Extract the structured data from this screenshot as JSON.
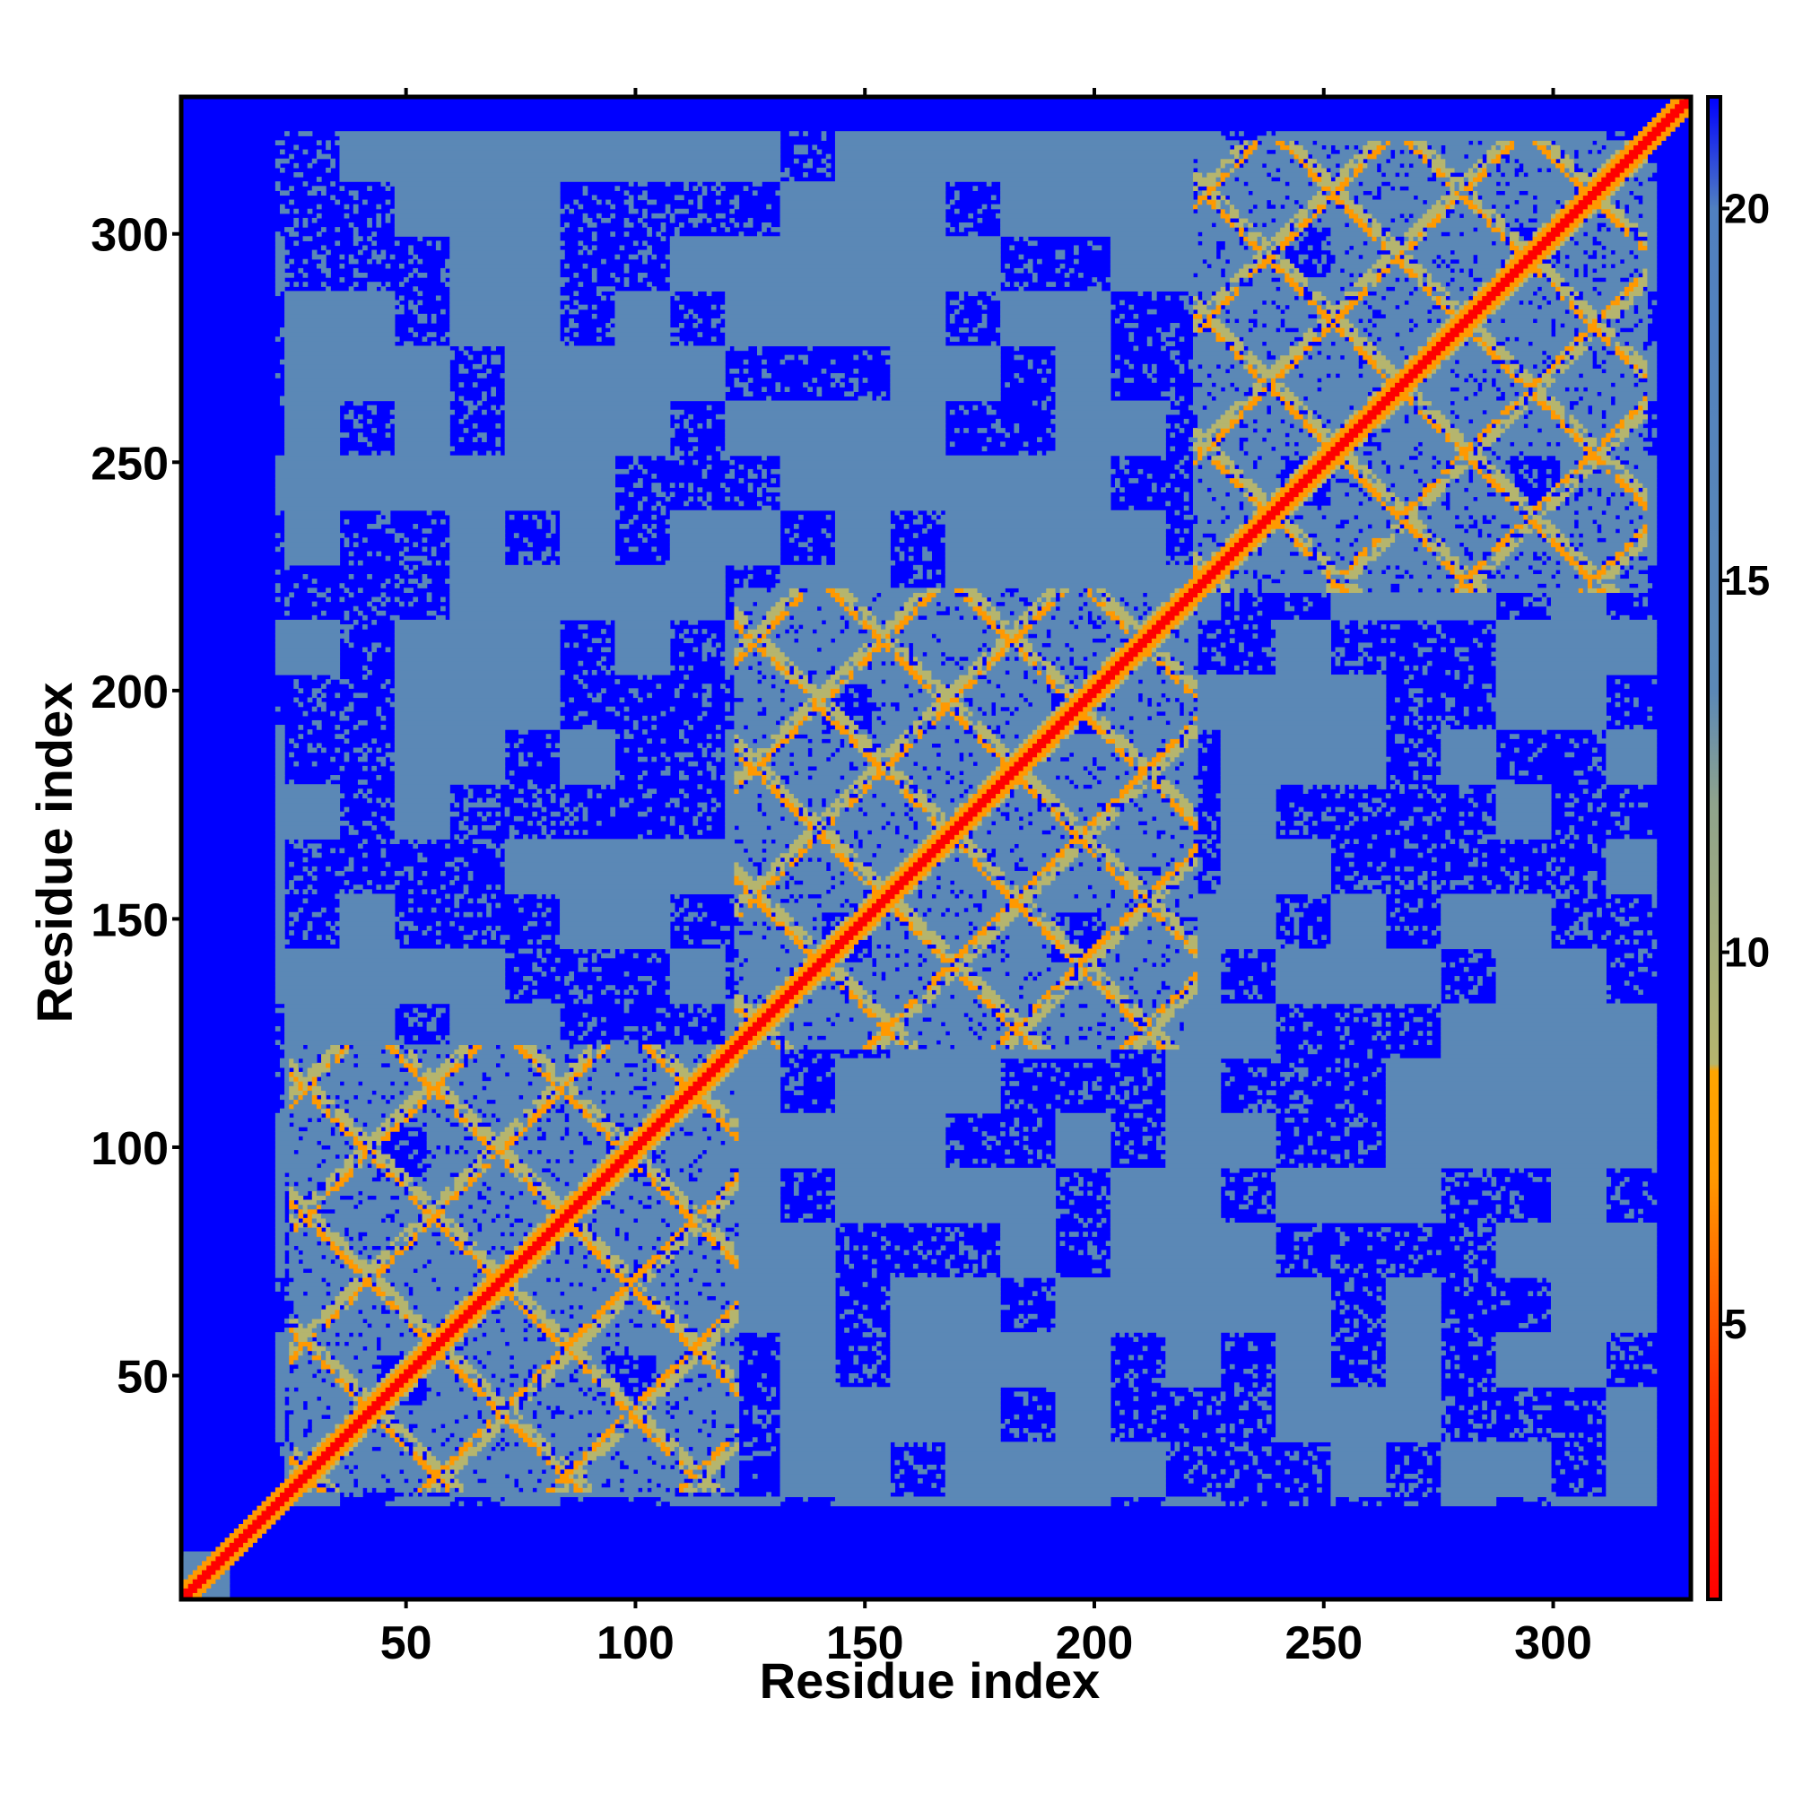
{
  "chart_data": {
    "type": "heatmap",
    "title": "",
    "xlabel": "Residue index",
    "ylabel": "Residue index",
    "xlim": [
      1,
      330
    ],
    "ylim": [
      1,
      330
    ],
    "x_ticks": [
      50,
      100,
      150,
      200,
      250,
      300
    ],
    "y_ticks": [
      50,
      100,
      150,
      200,
      250,
      300
    ],
    "colorbar": {
      "ticks": [
        5,
        10,
        15,
        20
      ],
      "range": [
        1.3,
        21.5
      ],
      "stops": [
        {
          "value": 1.3,
          "color": "#ff0000"
        },
        {
          "value": 4.0,
          "color": "#ff3300"
        },
        {
          "value": 7.0,
          "color": "#ff9900"
        },
        {
          "value": 8.4,
          "color": "#ffa500"
        },
        {
          "value": 8.5,
          "color": "#b5b56e"
        },
        {
          "value": 12.0,
          "color": "#8fa38c"
        },
        {
          "value": 13.5,
          "color": "#5b88b6"
        },
        {
          "value": 20.0,
          "color": "#5080c0"
        },
        {
          "value": 21.5,
          "color": "#0000ff"
        }
      ]
    },
    "background_value": 21.5,
    "diagonal_value": 3.8,
    "domains": [
      {
        "start": 25,
        "end": 122
      },
      {
        "start": 122,
        "end": 222
      },
      {
        "start": 222,
        "end": 320
      }
    ],
    "contact_value": 8.0,
    "near_contact_value": 11.5,
    "intermediate_value": 17.0,
    "colors": {
      "far": "#0000ff",
      "mid": "#5b88b6",
      "near": "#b5b56e",
      "contact": "#ff9900",
      "diagonal": "#ff0000"
    }
  }
}
